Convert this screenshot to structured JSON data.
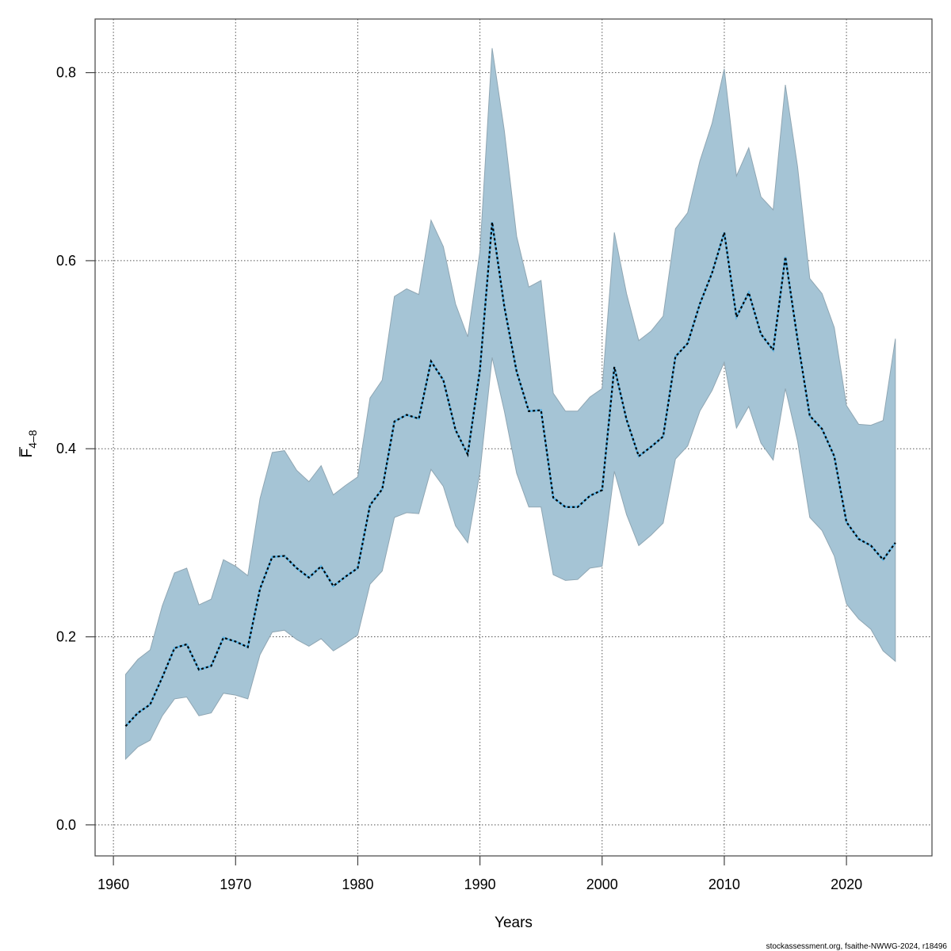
{
  "chart_data": {
    "type": "line",
    "title": "",
    "xlabel": "Years",
    "ylabel": "F̅ 4-8",
    "ylabel_main": "F",
    "ylabel_sub": "4–8",
    "xlim": [
      1958.5,
      2027
    ],
    "ylim": [
      -0.033,
      0.857
    ],
    "xticks": [
      1960,
      1970,
      1980,
      1990,
      2000,
      2010,
      2020
    ],
    "xtick_labels": [
      "1960",
      "1970",
      "1980",
      "1990",
      "2000",
      "2010",
      "2020"
    ],
    "yticks": [
      0.0,
      0.2,
      0.4,
      0.6,
      0.8
    ],
    "ytick_labels": [
      "0.0",
      "0.2",
      "0.4",
      "0.6",
      "0.8"
    ],
    "grid": true,
    "legend": "none",
    "colors": {
      "band_fill": "#a5c4d5",
      "band_edge": "#8fa6b3",
      "line_under": "#5ab4e5",
      "line_dash": "#000000",
      "grid": "#555555"
    },
    "x": [
      1961,
      1962,
      1963,
      1964,
      1965,
      1966,
      1967,
      1968,
      1969,
      1970,
      1971,
      1972,
      1973,
      1974,
      1975,
      1976,
      1977,
      1978,
      1979,
      1980,
      1981,
      1982,
      1983,
      1984,
      1985,
      1986,
      1987,
      1988,
      1989,
      1990,
      1991,
      1992,
      1993,
      1994,
      1995,
      1996,
      1997,
      1998,
      1999,
      2000,
      2001,
      2002,
      2003,
      2004,
      2005,
      2006,
      2007,
      2008,
      2009,
      2010,
      2011,
      2012,
      2013,
      2014,
      2015,
      2016,
      2017,
      2018,
      2019,
      2020,
      2021,
      2022,
      2023,
      2024
    ],
    "series": [
      {
        "name": "estimate",
        "values": [
          0.105,
          0.119,
          0.128,
          0.157,
          0.188,
          0.192,
          0.165,
          0.169,
          0.199,
          0.195,
          0.189,
          0.251,
          0.285,
          0.286,
          0.273,
          0.263,
          0.275,
          0.254,
          0.264,
          0.273,
          0.34,
          0.357,
          0.429,
          0.436,
          0.432,
          0.493,
          0.473,
          0.42,
          0.394,
          0.484,
          0.641,
          0.551,
          0.482,
          0.44,
          0.441,
          0.348,
          0.338,
          0.338,
          0.35,
          0.356,
          0.487,
          0.431,
          0.392,
          0.402,
          0.413,
          0.498,
          0.512,
          0.554,
          0.587,
          0.63,
          0.54,
          0.566,
          0.522,
          0.505,
          0.604,
          0.516,
          0.435,
          0.421,
          0.392,
          0.322,
          0.304,
          0.297,
          0.282,
          0.3
        ]
      },
      {
        "name": "upper",
        "values": [
          0.16,
          0.176,
          0.186,
          0.233,
          0.268,
          0.273,
          0.234,
          0.24,
          0.282,
          0.275,
          0.265,
          0.347,
          0.396,
          0.398,
          0.377,
          0.365,
          0.382,
          0.351,
          0.361,
          0.37,
          0.454,
          0.473,
          0.562,
          0.57,
          0.564,
          0.643,
          0.615,
          0.554,
          0.519,
          0.61,
          0.826,
          0.738,
          0.626,
          0.572,
          0.579,
          0.459,
          0.44,
          0.44,
          0.455,
          0.464,
          0.63,
          0.565,
          0.515,
          0.525,
          0.541,
          0.634,
          0.651,
          0.706,
          0.746,
          0.804,
          0.69,
          0.72,
          0.668,
          0.654,
          0.787,
          0.7,
          0.581,
          0.565,
          0.529,
          0.446,
          0.426,
          0.425,
          0.43,
          0.517
        ]
      },
      {
        "name": "lower",
        "values": [
          0.07,
          0.083,
          0.09,
          0.116,
          0.134,
          0.136,
          0.116,
          0.119,
          0.14,
          0.138,
          0.134,
          0.181,
          0.205,
          0.207,
          0.197,
          0.19,
          0.198,
          0.185,
          0.193,
          0.202,
          0.256,
          0.27,
          0.327,
          0.332,
          0.331,
          0.378,
          0.36,
          0.318,
          0.3,
          0.375,
          0.497,
          0.44,
          0.374,
          0.338,
          0.338,
          0.266,
          0.26,
          0.261,
          0.273,
          0.275,
          0.376,
          0.33,
          0.297,
          0.308,
          0.321,
          0.389,
          0.403,
          0.44,
          0.462,
          0.492,
          0.422,
          0.445,
          0.406,
          0.388,
          0.464,
          0.408,
          0.327,
          0.313,
          0.286,
          0.235,
          0.219,
          0.208,
          0.185,
          0.174
        ]
      }
    ]
  },
  "footer": {
    "credit": "stockassessment.org, fsaithe-NWWG-2024, r18496"
  }
}
